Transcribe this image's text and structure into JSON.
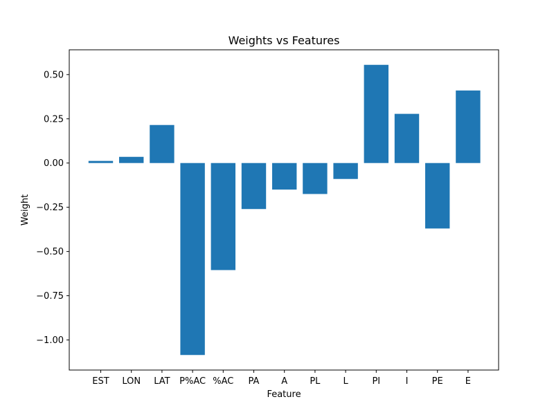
{
  "chart_data": {
    "type": "bar",
    "title": "Weights vs Features",
    "xlabel": "Feature",
    "ylabel": "Weight",
    "categories": [
      "EST",
      "LON",
      "LAT",
      "P%AC",
      "%AC",
      "PA",
      "A",
      "PL",
      "L",
      "PI",
      "I",
      "PE",
      "E"
    ],
    "values": [
      0.012,
      0.035,
      0.215,
      -1.085,
      -0.605,
      -0.26,
      -0.15,
      -0.175,
      -0.09,
      0.555,
      0.278,
      -0.37,
      0.41
    ],
    "ylim": [
      -1.17,
      0.64
    ],
    "yticks": [
      0.5,
      0.25,
      0.0,
      -0.25,
      -0.5,
      -0.75,
      -1.0
    ],
    "ytick_labels": [
      "0.50",
      "0.25",
      "0.00",
      "−0.25",
      "−0.50",
      "−0.75",
      "−1.00"
    ],
    "grid": false,
    "bar_color": "#1f77b4"
  }
}
